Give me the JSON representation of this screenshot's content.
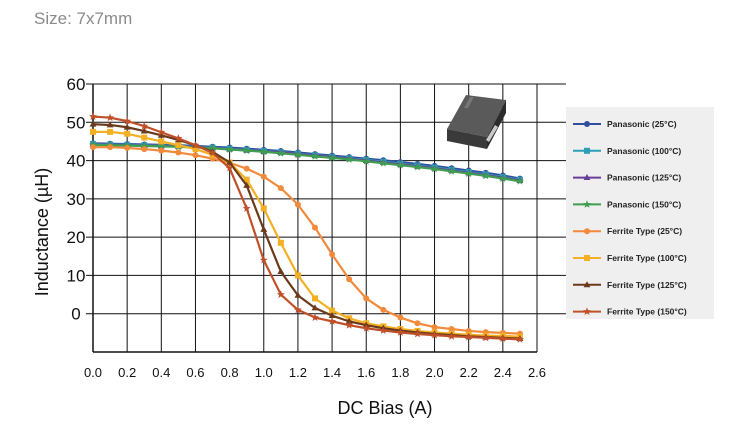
{
  "header": {
    "size_label": "Size: 7x7mm"
  },
  "chart_data": {
    "type": "line",
    "title": "",
    "xlabel": "DC Bias (A)",
    "ylabel": "Inductance (µH)",
    "xlim": [
      0,
      2.6
    ],
    "ylim": [
      -10,
      60
    ],
    "x_ticks": [
      "0.0",
      "0.2",
      "0.4",
      "0.6",
      "0.8",
      "1.0",
      "1.2",
      "1.4",
      "1.6",
      "1.8",
      "2.0",
      "2.2",
      "2.4",
      "2.6"
    ],
    "y_ticks": [
      "60",
      "50",
      "40",
      "30",
      "20",
      "10",
      "0"
    ],
    "grid": true,
    "legend_position": "right",
    "series": [
      {
        "name": "Panasonic (25°C)",
        "color": "#2f4f9c",
        "marker": "circle",
        "x": [
          0.0,
          0.1,
          0.2,
          0.3,
          0.4,
          0.5,
          0.6,
          0.7,
          0.8,
          0.9,
          1.0,
          1.1,
          1.2,
          1.3,
          1.4,
          1.5,
          1.6,
          1.7,
          1.8,
          1.9,
          2.0,
          2.1,
          2.2,
          2.3,
          2.4,
          2.5
        ],
        "y": [
          44.5,
          44.4,
          44.3,
          44.2,
          44.1,
          44.0,
          43.8,
          43.6,
          43.4,
          43.1,
          42.8,
          42.5,
          42.1,
          41.7,
          41.3,
          40.9,
          40.5,
          40.1,
          39.6,
          39.1,
          38.6,
          38.0,
          37.4,
          36.8,
          36.1,
          35.3
        ]
      },
      {
        "name": "Panasonic (100°C)",
        "color": "#2e9db8",
        "marker": "square",
        "x": [
          0.0,
          0.1,
          0.2,
          0.3,
          0.4,
          0.5,
          0.6,
          0.7,
          0.8,
          0.9,
          1.0,
          1.1,
          1.2,
          1.3,
          1.4,
          1.5,
          1.6,
          1.7,
          1.8,
          1.9,
          2.0,
          2.1,
          2.2,
          2.3,
          2.4,
          2.5
        ],
        "y": [
          44.3,
          44.2,
          44.1,
          44.0,
          43.9,
          43.8,
          43.6,
          43.4,
          43.1,
          42.8,
          42.5,
          42.2,
          41.8,
          41.4,
          41.0,
          40.6,
          40.2,
          39.7,
          39.2,
          38.7,
          38.2,
          37.6,
          37.0,
          36.4,
          35.7,
          35.0
        ]
      },
      {
        "name": "Panasonic (125°C)",
        "color": "#6a3d9a",
        "marker": "triangle",
        "x": [
          0.0,
          0.1,
          0.2,
          0.3,
          0.4,
          0.5,
          0.6,
          0.7,
          0.8,
          0.9,
          1.0,
          1.1,
          1.2,
          1.3,
          1.4,
          1.5,
          1.6,
          1.7,
          1.8,
          1.9,
          2.0,
          2.1,
          2.2,
          2.3,
          2.4,
          2.5
        ],
        "y": [
          44.2,
          44.1,
          44.0,
          43.9,
          43.8,
          43.7,
          43.5,
          43.3,
          43.0,
          42.7,
          42.4,
          42.1,
          41.7,
          41.3,
          40.9,
          40.5,
          40.0,
          39.5,
          39.0,
          38.5,
          38.0,
          37.4,
          36.8,
          36.2,
          35.5,
          34.8
        ]
      },
      {
        "name": "Panasonic (150°C)",
        "color": "#3f9e4f",
        "marker": "star",
        "x": [
          0.0,
          0.1,
          0.2,
          0.3,
          0.4,
          0.5,
          0.6,
          0.7,
          0.8,
          0.9,
          1.0,
          1.1,
          1.2,
          1.3,
          1.4,
          1.5,
          1.6,
          1.7,
          1.8,
          1.9,
          2.0,
          2.1,
          2.2,
          2.3,
          2.4,
          2.5
        ],
        "y": [
          44.1,
          44.0,
          43.9,
          43.8,
          43.7,
          43.6,
          43.4,
          43.2,
          42.9,
          42.6,
          42.3,
          41.9,
          41.5,
          41.1,
          40.7,
          40.3,
          39.8,
          39.3,
          38.8,
          38.3,
          37.8,
          37.2,
          36.6,
          36.0,
          35.3,
          34.6
        ]
      },
      {
        "name": "Ferrite Type (25°C)",
        "color": "#f28a3c",
        "marker": "circle",
        "x": [
          0.0,
          0.1,
          0.2,
          0.3,
          0.4,
          0.5,
          0.6,
          0.7,
          0.8,
          0.9,
          1.0,
          1.1,
          1.2,
          1.3,
          1.4,
          1.5,
          1.6,
          1.7,
          1.8,
          1.9,
          2.0,
          2.1,
          2.2,
          2.3,
          2.4,
          2.5
        ],
        "y": [
          43.5,
          43.5,
          43.3,
          43.0,
          42.6,
          42.1,
          41.4,
          40.5,
          39.4,
          37.9,
          35.8,
          32.8,
          28.5,
          22.5,
          15.5,
          9.0,
          4.0,
          1.0,
          -1.0,
          -2.5,
          -3.5,
          -4.0,
          -4.5,
          -4.8,
          -5.0,
          -5.2
        ]
      },
      {
        "name": "Ferrite Type (100°C)",
        "color": "#f4b024",
        "marker": "square",
        "x": [
          0.0,
          0.1,
          0.2,
          0.3,
          0.4,
          0.5,
          0.6,
          0.7,
          0.8,
          0.9,
          1.0,
          1.1,
          1.2,
          1.3,
          1.4,
          1.5,
          1.6,
          1.7,
          1.8,
          1.9,
          2.0,
          2.1,
          2.2,
          2.3,
          2.4,
          2.5
        ],
        "y": [
          47.5,
          47.5,
          47.0,
          46.0,
          45.0,
          44.0,
          43.0,
          41.5,
          39.5,
          35.0,
          27.5,
          18.5,
          10.0,
          4.0,
          0.8,
          -1.2,
          -2.5,
          -3.3,
          -4.0,
          -4.5,
          -4.9,
          -5.2,
          -5.5,
          -5.7,
          -5.8,
          -6.0
        ]
      },
      {
        "name": "Ferrite Type (125°C)",
        "color": "#6b3a1a",
        "marker": "triangle",
        "x": [
          0.0,
          0.1,
          0.2,
          0.3,
          0.4,
          0.5,
          0.6,
          0.7,
          0.8,
          0.9,
          1.0,
          1.1,
          1.2,
          1.3,
          1.4,
          1.5,
          1.6,
          1.7,
          1.8,
          1.9,
          2.0,
          2.1,
          2.2,
          2.3,
          2.4,
          2.5
        ],
        "y": [
          49.5,
          49.3,
          48.7,
          47.7,
          46.6,
          45.4,
          44.0,
          42.3,
          39.5,
          33.5,
          22.0,
          11.0,
          4.8,
          1.5,
          -0.5,
          -2.0,
          -3.0,
          -3.8,
          -4.4,
          -4.9,
          -5.3,
          -5.6,
          -5.9,
          -6.1,
          -6.3,
          -6.5
        ]
      },
      {
        "name": "Ferrite Type (150°C)",
        "color": "#c0502a",
        "marker": "star",
        "x": [
          0.0,
          0.1,
          0.2,
          0.3,
          0.4,
          0.5,
          0.6,
          0.7,
          0.8,
          0.9,
          1.0,
          1.1,
          1.2,
          1.3,
          1.4,
          1.5,
          1.6,
          1.7,
          1.8,
          1.9,
          2.0,
          2.1,
          2.2,
          2.3,
          2.4,
          2.5
        ],
        "y": [
          51.5,
          51.2,
          50.3,
          49.0,
          47.4,
          45.8,
          44.0,
          42.0,
          38.0,
          27.5,
          14.0,
          5.0,
          1.0,
          -1.0,
          -2.0,
          -3.0,
          -3.8,
          -4.4,
          -4.9,
          -5.3,
          -5.6,
          -5.9,
          -6.1,
          -6.3,
          -6.5,
          -6.7
        ]
      }
    ]
  }
}
